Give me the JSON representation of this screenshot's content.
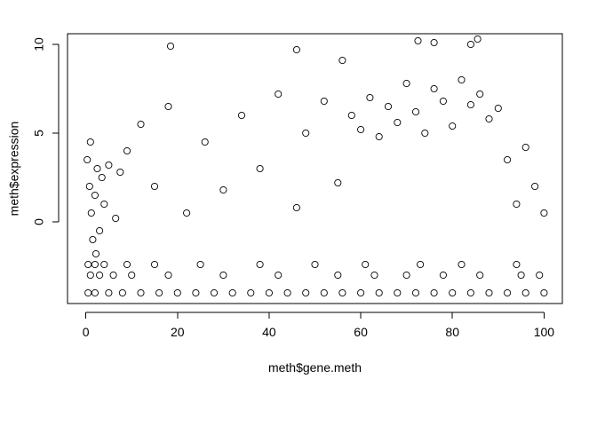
{
  "chart_data": {
    "type": "scatter",
    "title": "",
    "xlabel": "meth$gene.meth",
    "ylabel": "meth$expression",
    "xlim": [
      -4,
      104
    ],
    "ylim": [
      -4.6,
      10.6
    ],
    "xticks": [
      0,
      20,
      40,
      60,
      80,
      100
    ],
    "xtick_labels": [
      "0",
      "20",
      "40",
      "60",
      "80",
      "100"
    ],
    "yticks": [
      0,
      5,
      10
    ],
    "ytick_labels": [
      "0",
      "5",
      "10"
    ],
    "grid": false,
    "legend": "none",
    "marker": "open-circle",
    "marker_color": "#000000",
    "series": [
      {
        "values": [
          [
            0.5,
            -4.0
          ],
          [
            2,
            -4.0
          ],
          [
            5,
            -4.0
          ],
          [
            8,
            -4.0
          ],
          [
            12,
            -4.0
          ],
          [
            16,
            -4.0
          ],
          [
            20,
            -4.0
          ],
          [
            24,
            -4.0
          ],
          [
            28,
            -4.0
          ],
          [
            32,
            -4.0
          ],
          [
            36,
            -4.0
          ],
          [
            40,
            -4.0
          ],
          [
            44,
            -4.0
          ],
          [
            48,
            -4.0
          ],
          [
            52,
            -4.0
          ],
          [
            56,
            -4.0
          ],
          [
            60,
            -4.0
          ],
          [
            64,
            -4.0
          ],
          [
            68,
            -4.0
          ],
          [
            72,
            -4.0
          ],
          [
            76,
            -4.0
          ],
          [
            80,
            -4.0
          ],
          [
            84,
            -4.0
          ],
          [
            88,
            -4.0
          ],
          [
            92,
            -4.0
          ],
          [
            96,
            -4.0
          ],
          [
            100,
            -4.0
          ],
          [
            1,
            -3.0
          ],
          [
            3,
            -3.0
          ],
          [
            6,
            -3.0
          ],
          [
            10,
            -3.0
          ],
          [
            18,
            -3.0
          ],
          [
            30,
            -3.0
          ],
          [
            42,
            -3.0
          ],
          [
            55,
            -3.0
          ],
          [
            63,
            -3.0
          ],
          [
            70,
            -3.0
          ],
          [
            78,
            -3.0
          ],
          [
            86,
            -3.0
          ],
          [
            95,
            -3.0
          ],
          [
            99,
            -3.0
          ],
          [
            0.5,
            -2.4
          ],
          [
            2,
            -2.4
          ],
          [
            4,
            -2.4
          ],
          [
            9,
            -2.4
          ],
          [
            15,
            -2.4
          ],
          [
            25,
            -2.4
          ],
          [
            38,
            -2.4
          ],
          [
            50,
            -2.4
          ],
          [
            61,
            -2.4
          ],
          [
            73,
            -2.4
          ],
          [
            82,
            -2.4
          ],
          [
            94,
            -2.4
          ],
          [
            0.3,
            3.5
          ],
          [
            0.8,
            2.0
          ],
          [
            1.2,
            0.5
          ],
          [
            1.5,
            -1.0
          ],
          [
            2.0,
            1.5
          ],
          [
            2.5,
            3.0
          ],
          [
            3.0,
            -0.5
          ],
          [
            3.5,
            2.5
          ],
          [
            1.0,
            4.5
          ],
          [
            2.2,
            -1.8
          ],
          [
            4.0,
            1.0
          ],
          [
            5.0,
            3.2
          ],
          [
            6.5,
            0.2
          ],
          [
            7.5,
            2.8
          ],
          [
            9.0,
            4.0
          ],
          [
            12,
            5.5
          ],
          [
            15,
            2.0
          ],
          [
            18,
            6.5
          ],
          [
            22,
            0.5
          ],
          [
            26,
            4.5
          ],
          [
            30,
            1.8
          ],
          [
            34,
            6.0
          ],
          [
            38,
            3.0
          ],
          [
            42,
            7.2
          ],
          [
            46,
            0.8
          ],
          [
            48,
            5.0
          ],
          [
            52,
            6.8
          ],
          [
            55,
            2.2
          ],
          [
            58,
            6.0
          ],
          [
            60,
            5.2
          ],
          [
            62,
            7.0
          ],
          [
            64,
            4.8
          ],
          [
            66,
            6.5
          ],
          [
            68,
            5.6
          ],
          [
            70,
            7.8
          ],
          [
            72,
            6.2
          ],
          [
            74,
            5.0
          ],
          [
            76,
            7.5
          ],
          [
            78,
            6.8
          ],
          [
            80,
            5.4
          ],
          [
            82,
            8.0
          ],
          [
            84,
            6.6
          ],
          [
            86,
            7.2
          ],
          [
            88,
            5.8
          ],
          [
            90,
            6.4
          ],
          [
            92,
            3.5
          ],
          [
            94,
            1.0
          ],
          [
            96,
            4.2
          ],
          [
            98,
            2.0
          ],
          [
            100,
            0.5
          ],
          [
            18.5,
            9.9
          ],
          [
            72.5,
            10.2
          ],
          [
            76,
            10.1
          ],
          [
            84,
            10.0
          ],
          [
            85.5,
            10.3
          ],
          [
            46,
            9.7
          ],
          [
            56,
            9.1
          ]
        ]
      }
    ]
  }
}
